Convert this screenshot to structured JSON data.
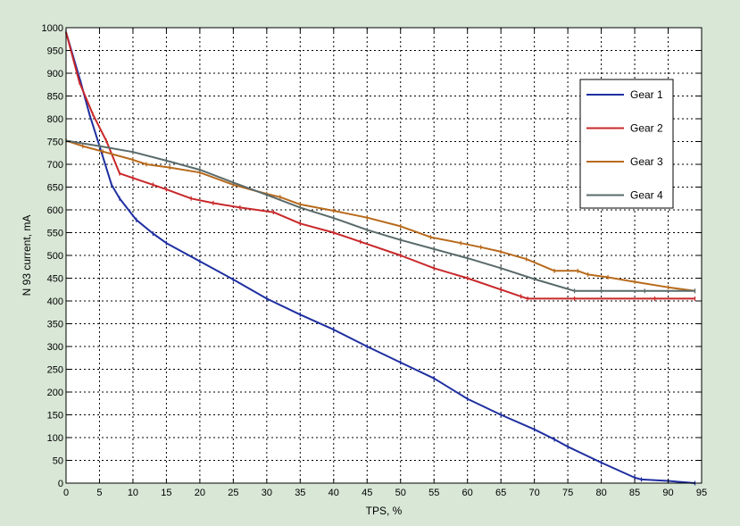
{
  "chart_data": {
    "type": "line",
    "title": "",
    "xlabel": "TPS, %",
    "ylabel": "N 93 current, mA",
    "xlim": [
      0,
      95
    ],
    "ylim": [
      0,
      1000
    ],
    "x_ticks": [
      0,
      5,
      10,
      15,
      20,
      25,
      30,
      35,
      40,
      45,
      50,
      55,
      60,
      65,
      70,
      75,
      80,
      85,
      90,
      95
    ],
    "y_ticks": [
      0,
      50,
      100,
      150,
      200,
      250,
      300,
      350,
      400,
      450,
      500,
      550,
      600,
      650,
      700,
      750,
      800,
      850,
      900,
      950,
      1000
    ],
    "grid": true,
    "legend_position": "top-right",
    "series": [
      {
        "name": "Gear 1",
        "color": "#1f2fa0",
        "x": [
          0,
          2.2,
          3.5,
          5,
          6.8,
          8,
          10.5,
          13,
          15,
          20,
          25,
          30,
          35,
          40,
          45,
          50,
          55,
          60,
          65,
          70,
          73,
          75,
          80,
          85,
          86,
          90,
          94
        ],
        "y": [
          990,
          880,
          810,
          740,
          655,
          625,
          578,
          548,
          527,
          487,
          447,
          405,
          370,
          337,
          300,
          265,
          230,
          185,
          150,
          118,
          96,
          80,
          45,
          12,
          8,
          5,
          0
        ]
      },
      {
        "name": "Gear 2",
        "color": "#c8282a",
        "x": [
          0,
          2,
          4,
          6,
          8,
          10,
          13,
          15,
          18.7,
          22,
          26,
          31,
          35,
          40,
          44,
          50,
          55,
          60,
          65,
          68,
          69,
          76,
          88,
          94
        ],
        "y": [
          990,
          880,
          810,
          752,
          680,
          670,
          655,
          645,
          625,
          615,
          605,
          595,
          570,
          550,
          530,
          500,
          472,
          450,
          425,
          410,
          405,
          405,
          405,
          405
        ]
      },
      {
        "name": "Gear 3",
        "color": "#b86a1c",
        "x": [
          0,
          2.5,
          5.5,
          10,
          12,
          15.5,
          20,
          25,
          30,
          32,
          35,
          40,
          45,
          50,
          54.5,
          59,
          62,
          65,
          68.8,
          73,
          76.5,
          78,
          81,
          85,
          90,
          94
        ],
        "y": [
          752,
          740,
          728,
          710,
          700,
          693,
          682,
          655,
          635,
          628,
          612,
          598,
          583,
          564,
          540,
          527,
          518,
          508,
          492,
          466,
          466,
          458,
          452,
          442,
          430,
          422
        ]
      },
      {
        "name": "Gear 4",
        "color": "#5a6a6a",
        "x": [
          0,
          5,
          10,
          15,
          20,
          25,
          30,
          35,
          40,
          45,
          50,
          55,
          60,
          65,
          70,
          76,
          80,
          86.5,
          94
        ],
        "y": [
          752,
          740,
          727,
          708,
          688,
          660,
          633,
          605,
          582,
          556,
          534,
          514,
          494,
          472,
          448,
          422,
          422,
          422,
          422
        ]
      }
    ]
  }
}
